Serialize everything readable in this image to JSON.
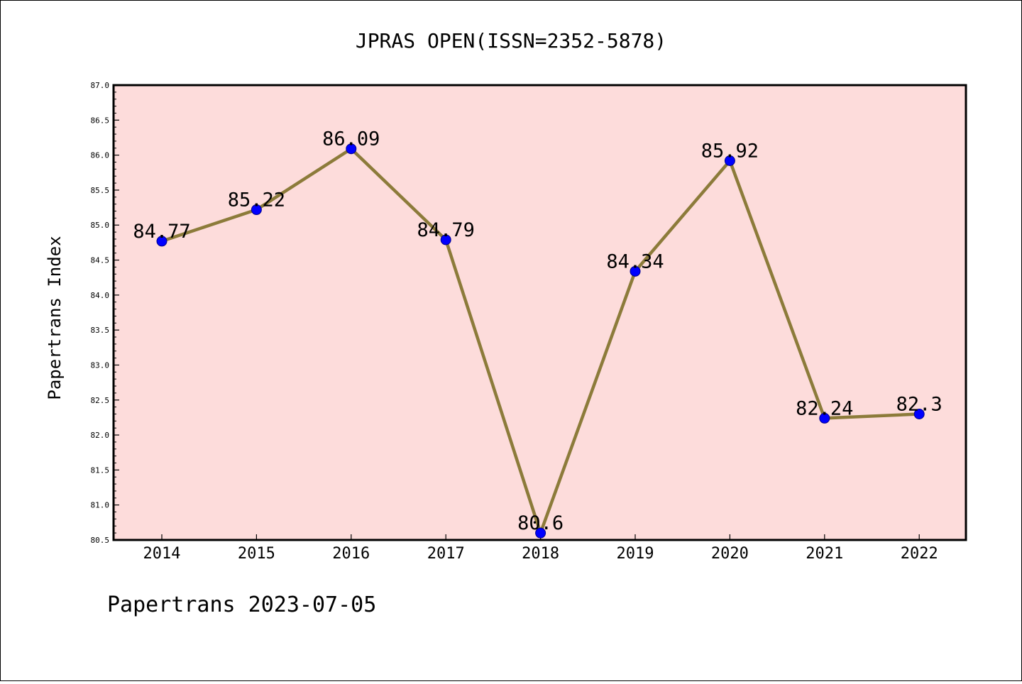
{
  "chart_data": {
    "type": "line",
    "title": "JPRAS OPEN(ISSN=2352-5878)",
    "xlabel": "",
    "ylabel": "Papertrans Index",
    "categories": [
      "2014",
      "2015",
      "2016",
      "2017",
      "2018",
      "2019",
      "2020",
      "2021",
      "2022"
    ],
    "series": [
      {
        "values": [
          84.77,
          85.22,
          86.09,
          84.79,
          80.6,
          84.34,
          85.92,
          82.24,
          82.3
        ]
      }
    ],
    "data_labels": [
      "84.77",
      "85.22",
      "86.09",
      "84.79",
      "80.6",
      "84.34",
      "85.92",
      "82.24",
      "82.3"
    ],
    "ylim": [
      80.5,
      87.0
    ],
    "yticks": [
      "80.5",
      "81.0",
      "81.5",
      "82.0",
      "82.5",
      "83.0",
      "83.5",
      "84.0",
      "84.5",
      "85.0",
      "85.5",
      "86.0",
      "86.5",
      "87.0"
    ],
    "grid": false,
    "legend": "none",
    "colors": {
      "plot_background": "#fddcdb",
      "line": "#8c7b3a",
      "marker": "#0000ff",
      "marker_edge": "#00008b"
    }
  },
  "footer": {
    "text": "Papertrans 2023-07-05"
  }
}
